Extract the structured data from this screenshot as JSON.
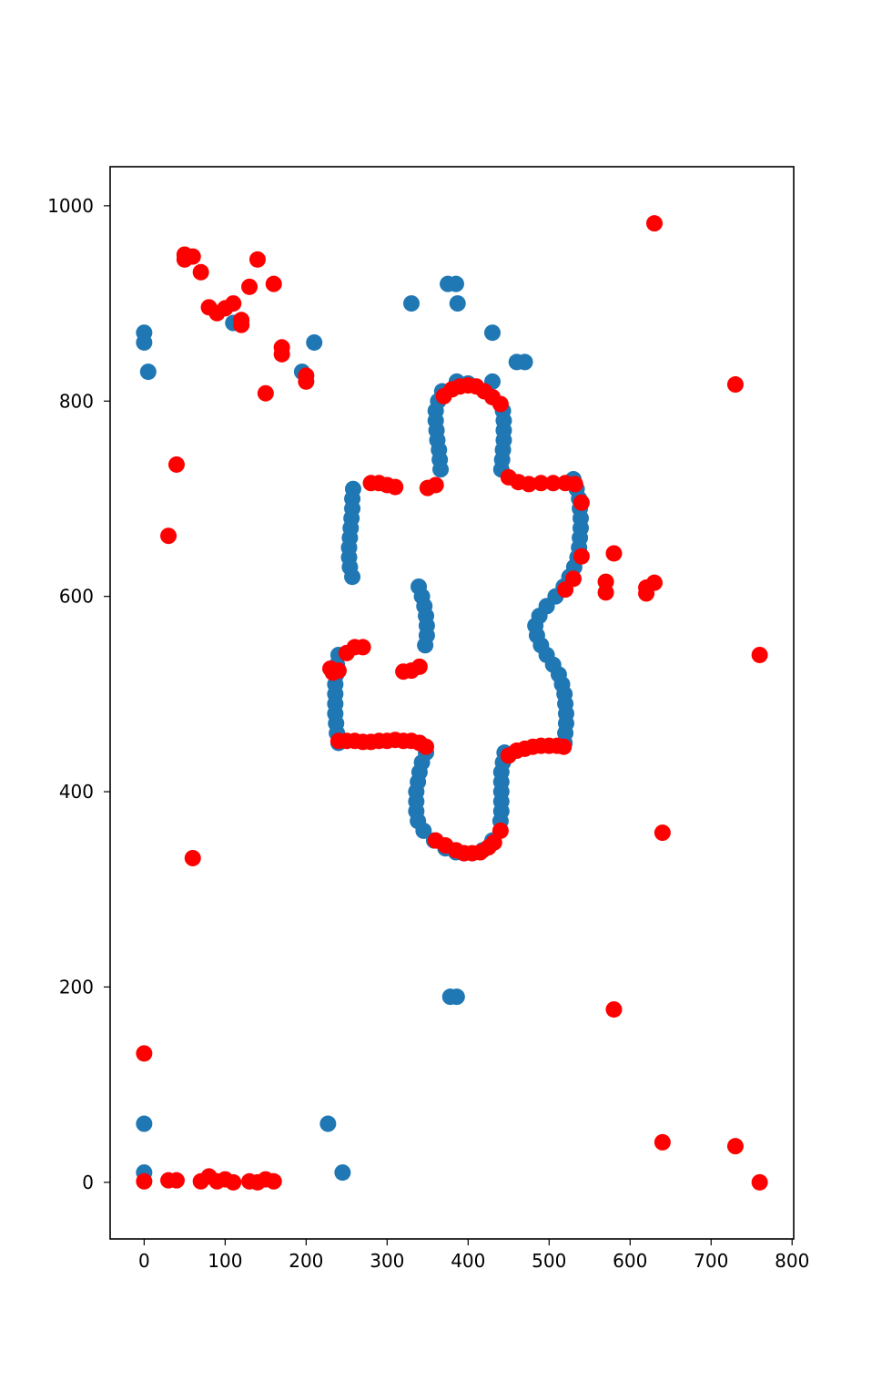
{
  "chart_data": {
    "type": "scatter",
    "title": "",
    "xlabel": "",
    "ylabel": "",
    "xlim": [
      -42,
      802
    ],
    "ylim": [
      -58,
      1040
    ],
    "grid": false,
    "x_ticks": [
      "0",
      "100",
      "200",
      "300",
      "400",
      "500",
      "600",
      "700",
      "800"
    ],
    "y_ticks": [
      "0",
      "200",
      "400",
      "600",
      "800",
      "1000"
    ],
    "x_tick_values": [
      0,
      100,
      200,
      300,
      400,
      500,
      600,
      700,
      800
    ],
    "y_tick_values": [
      0,
      200,
      400,
      600,
      800,
      1000
    ],
    "series": [
      {
        "color": "#1f77b4",
        "points": [
          [
            0,
            870
          ],
          [
            0,
            860
          ],
          [
            5,
            830
          ],
          [
            110,
            880
          ],
          [
            195,
            830
          ],
          [
            210,
            860
          ],
          [
            330,
            900
          ],
          [
            375,
            920
          ],
          [
            385,
            920
          ],
          [
            387,
            900
          ],
          [
            430,
            870
          ],
          [
            430,
            820
          ],
          [
            460,
            840
          ],
          [
            470,
            840
          ],
          [
            0,
            60
          ],
          [
            0,
            10
          ],
          [
            227,
            60
          ],
          [
            245,
            10
          ],
          [
            378,
            190
          ],
          [
            386,
            190
          ],
          [
            368,
            810
          ],
          [
            363,
            800
          ],
          [
            360,
            790
          ],
          [
            360,
            780
          ],
          [
            361,
            770
          ],
          [
            362,
            760
          ],
          [
            364,
            750
          ],
          [
            365,
            740
          ],
          [
            366,
            730
          ],
          [
            386,
            820
          ],
          [
            400,
            818
          ],
          [
            443,
            790
          ],
          [
            444,
            780
          ],
          [
            444,
            770
          ],
          [
            444,
            760
          ],
          [
            443,
            750
          ],
          [
            442,
            740
          ],
          [
            441,
            730
          ],
          [
            258,
            710
          ],
          [
            257,
            700
          ],
          [
            257,
            690
          ],
          [
            256,
            680
          ],
          [
            255,
            670
          ],
          [
            254,
            660
          ],
          [
            253,
            650
          ],
          [
            253,
            640
          ],
          [
            254,
            630
          ],
          [
            257,
            620
          ],
          [
            339,
            610
          ],
          [
            343,
            600
          ],
          [
            346,
            590
          ],
          [
            348,
            580
          ],
          [
            349,
            570
          ],
          [
            349,
            560
          ],
          [
            347,
            550
          ],
          [
            530,
            720
          ],
          [
            534,
            710
          ],
          [
            537,
            700
          ],
          [
            538,
            690
          ],
          [
            539,
            680
          ],
          [
            539,
            670
          ],
          [
            538,
            660
          ],
          [
            537,
            650
          ],
          [
            535,
            640
          ],
          [
            531,
            630
          ],
          [
            525,
            620
          ],
          [
            518,
            610
          ],
          [
            508,
            600
          ],
          [
            497,
            590
          ],
          [
            488,
            580
          ],
          [
            483,
            570
          ],
          [
            485,
            560
          ],
          [
            490,
            550
          ],
          [
            497,
            540
          ],
          [
            505,
            530
          ],
          [
            512,
            520
          ],
          [
            516,
            510
          ],
          [
            519,
            500
          ],
          [
            520,
            490
          ],
          [
            521,
            480
          ],
          [
            521,
            470
          ],
          [
            520,
            460
          ],
          [
            519,
            450
          ],
          [
            240,
            540
          ],
          [
            238,
            530
          ],
          [
            237,
            520
          ],
          [
            236,
            510
          ],
          [
            236,
            500
          ],
          [
            236,
            490
          ],
          [
            236,
            480
          ],
          [
            237,
            470
          ],
          [
            238,
            460
          ],
          [
            240,
            450
          ],
          [
            340,
            450
          ],
          [
            348,
            440
          ],
          [
            343,
            430
          ],
          [
            340,
            420
          ],
          [
            338,
            410
          ],
          [
            336,
            400
          ],
          [
            336,
            390
          ],
          [
            336,
            380
          ],
          [
            338,
            370
          ],
          [
            345,
            360
          ],
          [
            358,
            350
          ],
          [
            372,
            342
          ],
          [
            385,
            338
          ],
          [
            395,
            337
          ],
          [
            418,
            340
          ],
          [
            430,
            350
          ],
          [
            445,
            440
          ],
          [
            443,
            430
          ],
          [
            441,
            420
          ],
          [
            441,
            410
          ],
          [
            441,
            400
          ],
          [
            441,
            390
          ],
          [
            441,
            380
          ],
          [
            440,
            370
          ]
        ]
      },
      {
        "color": "#ff0000",
        "points": [
          [
            50,
            950
          ],
          [
            60,
            948
          ],
          [
            50,
            945
          ],
          [
            70,
            932
          ],
          [
            80,
            896
          ],
          [
            90,
            890
          ],
          [
            100,
            895
          ],
          [
            110,
            900
          ],
          [
            120,
            883
          ],
          [
            120,
            878
          ],
          [
            130,
            917
          ],
          [
            140,
            945
          ],
          [
            160,
            920
          ],
          [
            170,
            855
          ],
          [
            170,
            848
          ],
          [
            150,
            808
          ],
          [
            200,
            826
          ],
          [
            200,
            820
          ],
          [
            40,
            735
          ],
          [
            30,
            662
          ],
          [
            60,
            332
          ],
          [
            0,
            132
          ],
          [
            0,
            1
          ],
          [
            30,
            2
          ],
          [
            40,
            2
          ],
          [
            70,
            1
          ],
          [
            80,
            6
          ],
          [
            90,
            1
          ],
          [
            100,
            3
          ],
          [
            110,
            0
          ],
          [
            130,
            1
          ],
          [
            140,
            0
          ],
          [
            150,
            3
          ],
          [
            160,
            1
          ],
          [
            630,
            982
          ],
          [
            730,
            817
          ],
          [
            760,
            540
          ],
          [
            580,
            644
          ],
          [
            570,
            615
          ],
          [
            570,
            604
          ],
          [
            620,
            609
          ],
          [
            620,
            603
          ],
          [
            630,
            614
          ],
          [
            640,
            358
          ],
          [
            580,
            177
          ],
          [
            640,
            41
          ],
          [
            730,
            37
          ],
          [
            760,
            0
          ],
          [
            370,
            805
          ],
          [
            380,
            812
          ],
          [
            390,
            815
          ],
          [
            400,
            816
          ],
          [
            410,
            815
          ],
          [
            420,
            810
          ],
          [
            430,
            804
          ],
          [
            440,
            797
          ],
          [
            450,
            722
          ],
          [
            462,
            717
          ],
          [
            475,
            715
          ],
          [
            490,
            716
          ],
          [
            505,
            716
          ],
          [
            520,
            716
          ],
          [
            532,
            715
          ],
          [
            540,
            696
          ],
          [
            540,
            641
          ],
          [
            530,
            618
          ],
          [
            520,
            607
          ],
          [
            280,
            716
          ],
          [
            290,
            716
          ],
          [
            300,
            714
          ],
          [
            310,
            712
          ],
          [
            350,
            711
          ],
          [
            360,
            714
          ],
          [
            230,
            526
          ],
          [
            233,
            522
          ],
          [
            240,
            524
          ],
          [
            250,
            542
          ],
          [
            260,
            548
          ],
          [
            270,
            548
          ],
          [
            320,
            523
          ],
          [
            330,
            524
          ],
          [
            340,
            528
          ],
          [
            240,
            452
          ],
          [
            250,
            452
          ],
          [
            260,
            452
          ],
          [
            270,
            451
          ],
          [
            280,
            451
          ],
          [
            290,
            452
          ],
          [
            300,
            452
          ],
          [
            310,
            453
          ],
          [
            320,
            452
          ],
          [
            330,
            452
          ],
          [
            340,
            450
          ],
          [
            348,
            446
          ],
          [
            450,
            437
          ],
          [
            460,
            442
          ],
          [
            470,
            444
          ],
          [
            480,
            446
          ],
          [
            490,
            447
          ],
          [
            500,
            447
          ],
          [
            510,
            447
          ],
          [
            518,
            446
          ],
          [
            360,
            350
          ],
          [
            372,
            345
          ],
          [
            385,
            340
          ],
          [
            395,
            337
          ],
          [
            405,
            337
          ],
          [
            415,
            338
          ],
          [
            425,
            343
          ],
          [
            432,
            348
          ],
          [
            440,
            360
          ]
        ]
      }
    ]
  }
}
